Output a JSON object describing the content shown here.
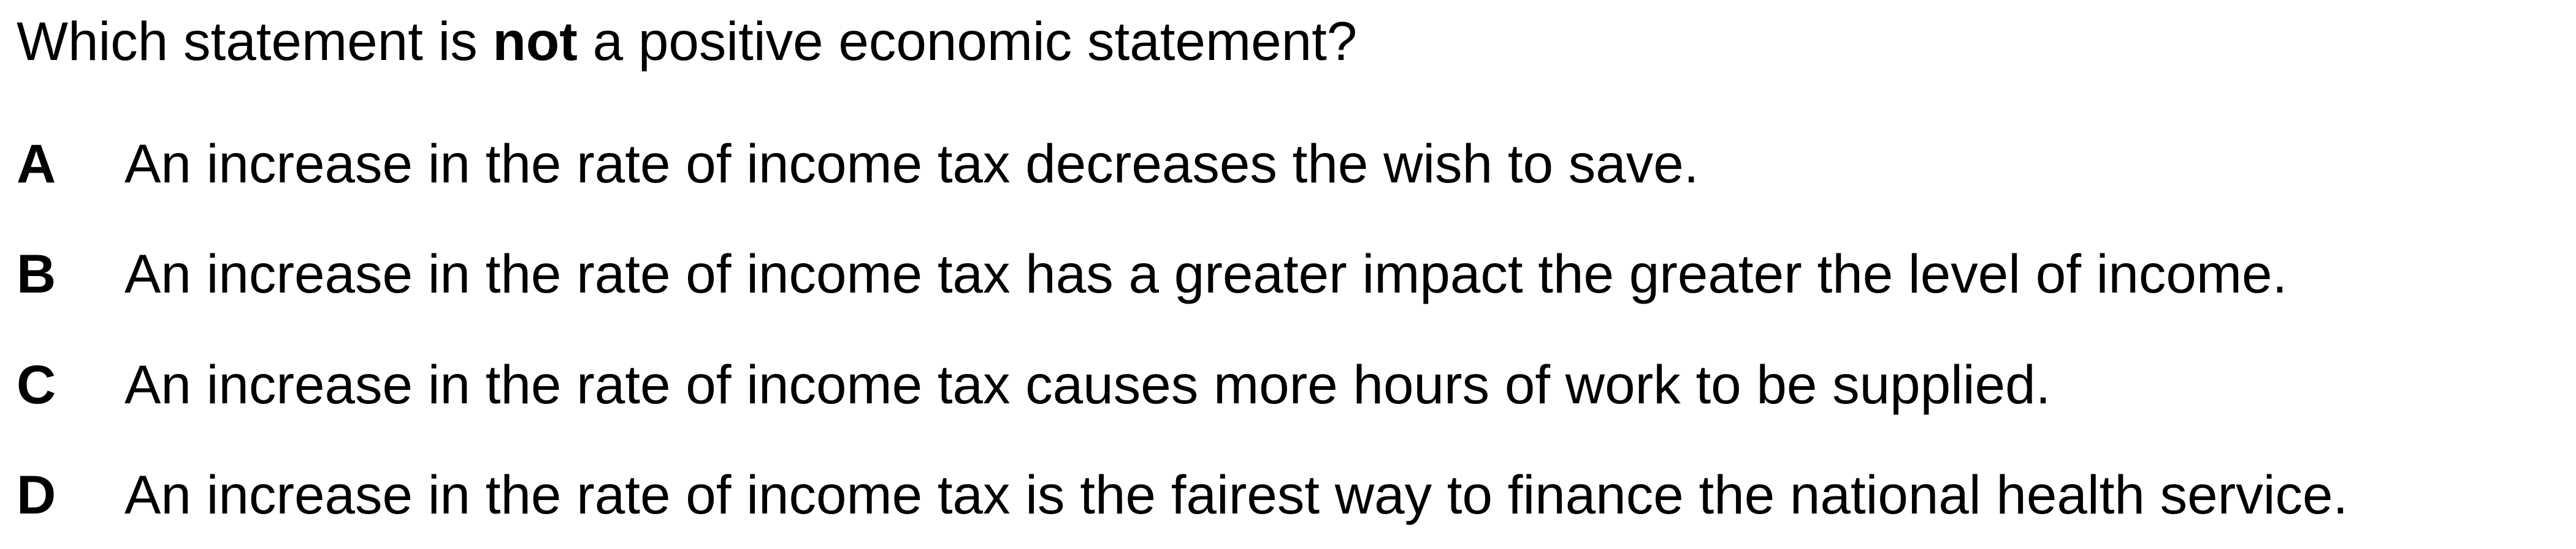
{
  "question": {
    "before": "Which statement is ",
    "emphasis": "not",
    "after": " a positive economic statement?"
  },
  "options": [
    {
      "letter": "A",
      "text": "An increase in the rate of income tax decreases the wish to save."
    },
    {
      "letter": "B",
      "text": "An increase in the rate of income tax has a greater impact the greater the level of income."
    },
    {
      "letter": "C",
      "text": "An increase in the rate of income tax causes more hours of work to be supplied."
    },
    {
      "letter": "D",
      "text": "An increase in the rate of income tax is the fairest way to finance the national health service."
    }
  ]
}
